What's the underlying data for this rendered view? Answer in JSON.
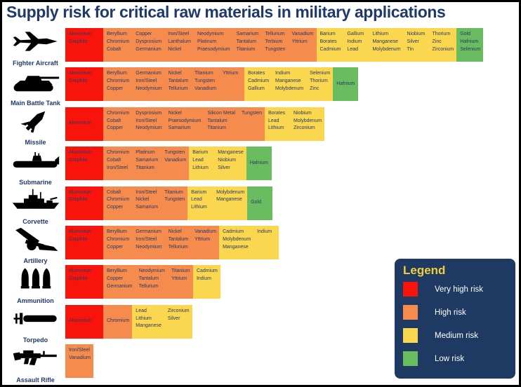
{
  "title": "Supply risk for critical raw materials in military applications",
  "legend": {
    "title": "Legend",
    "background": "#1e3a63",
    "title_color": "#efcf3d"
  },
  "chart_data": {
    "type": "heatmap",
    "title": "Supply risk for critical raw materials in military applications",
    "legend_position": "bottom-right",
    "risk_levels": [
      {
        "key": "very_high",
        "label": "Very high risk",
        "color": "#f9140b"
      },
      {
        "key": "high",
        "label": "High risk",
        "color": "#f58b4d"
      },
      {
        "key": "medium",
        "label": "Medium risk",
        "color": "#fbd64f"
      },
      {
        "key": "low",
        "label": "Low risk",
        "color": "#69bc5f"
      }
    ],
    "categories": [
      "Fighter Aircraft",
      "Main Battle Tank",
      "Missile",
      "Submarine",
      "Corvette",
      "Artillery",
      "Ammunition",
      "Torpedo",
      "Assault Rifle"
    ],
    "rows": [
      {
        "category": "Fighter Aircraft",
        "icon": "fighter-aircraft",
        "materials": {
          "very_high": [
            "Aluminium",
            "Graphite"
          ],
          "high": [
            "Beryllium",
            "Chromium",
            "Cobalt",
            "Copper",
            "Dysprosium",
            "Germanium",
            "Iron/Steel",
            "Lanthalum",
            "Nickel",
            "Neodymium",
            "Platinum",
            "Praesodymium",
            "Samarium",
            "Tantalum",
            "Titanium",
            "Tellurium",
            "Terbium",
            "Tungsten",
            "Vanadium",
            "Yttrium"
          ],
          "medium": [
            "Barium",
            "Borates",
            "Cadmium",
            "Gallium",
            "Indium",
            "Lead",
            "Lithium",
            "Manganese",
            "Molybdenum",
            "Niobium",
            "Silver",
            "Tin",
            "Thorium",
            "Zinc",
            "Zirconium"
          ],
          "low": [
            "Gold",
            "Hafnium",
            "Selenium"
          ]
        }
      },
      {
        "category": "Main Battle Tank",
        "icon": "main-battle-tank",
        "materials": {
          "very_high": [
            "Aluminium",
            "Graphite"
          ],
          "high": [
            "Beryllium",
            "Chromium",
            "Copper",
            "Germanium",
            "Iron/Steel",
            "Neodymium",
            "Nickel",
            "Tantalum",
            "Tellurium",
            "Titanium",
            "Tungsten",
            "Vanadium",
            "Yttrium"
          ],
          "medium": [
            "Borates",
            "Cadmium",
            "Gallium",
            "Indium",
            "Manganese",
            "Molybdenum",
            "Selenium",
            "Thorium",
            "Zinc"
          ],
          "low": [
            "Hafnium"
          ]
        }
      },
      {
        "category": "Missile",
        "icon": "missile",
        "materials": {
          "very_high": [
            "Aluminium"
          ],
          "high": [
            "Chromium",
            "Cobalt",
            "Copper",
            "Dysprosium",
            "Iron/Steel",
            "Neodymium",
            "Nickel",
            "Praesodymium",
            "Samarium",
            "Silicon Metal",
            "Tantalum",
            "Titanium",
            "Tungsten"
          ],
          "medium": [
            "Borates",
            "Lead",
            "Lithium",
            "Niobium",
            "Molybdenum",
            "Zirconium"
          ],
          "low": []
        }
      },
      {
        "category": "Submarine",
        "icon": "submarine",
        "materials": {
          "very_high": [
            "Aluminium",
            "Graphite"
          ],
          "high": [
            "Chromium",
            "Cobalt",
            "Iron/Steel",
            "Platinum",
            "Samarium",
            "Titanium",
            "Tungsten",
            "Vanadium"
          ],
          "medium": [
            "Barium",
            "Lead",
            "Lithium",
            "Manganese",
            "Niobium",
            "Silver"
          ],
          "low": [
            "Hafnium"
          ]
        }
      },
      {
        "category": "Corvette",
        "icon": "corvette",
        "materials": {
          "very_high": [
            "Aluminium",
            "Graphite"
          ],
          "high": [
            "Cobalt",
            "Chromium",
            "Copper",
            "Iron/Steel",
            "Nickel",
            "Samarium",
            "Titanium",
            "Tungsten"
          ],
          "medium": [
            "Barium",
            "Lead",
            "Lithium",
            "Molybdenum",
            "Manganese"
          ],
          "low": [
            "Gold"
          ]
        }
      },
      {
        "category": "Artillery",
        "icon": "artillery",
        "materials": {
          "very_high": [
            "Aluminium",
            "Graphite"
          ],
          "high": [
            "Beryllium",
            "Chromium",
            "Copper",
            "Germanium",
            "Iron/Steel",
            "Neodymium",
            "Nickel",
            "Tantalum",
            "Tellurium",
            "Vanadium",
            "Yttrium"
          ],
          "medium": [
            "Cadmium",
            "Molybdenum",
            "Manganese",
            "Indium"
          ],
          "low": []
        }
      },
      {
        "category": "Ammunition",
        "icon": "ammunition",
        "materials": {
          "very_high": [
            "Aluminium",
            "Graphite"
          ],
          "high": [
            "Beryllium",
            "Copper",
            "Germanium",
            "Neodymium",
            "Tantalum",
            "Tellurium",
            "Titanium",
            "Yttrium"
          ],
          "medium": [
            "Cadmium",
            "Indium"
          ],
          "low": []
        }
      },
      {
        "category": "Torpedo",
        "icon": "torpedo",
        "materials": {
          "very_high": [
            "Aluminium"
          ],
          "high": [
            "Chromium"
          ],
          "medium": [
            "Lead",
            "Lithium",
            "Manganese",
            "Zirconium",
            "Silver"
          ],
          "low": []
        }
      },
      {
        "category": "Assault Rifle",
        "icon": "assault-rifle",
        "materials": {
          "very_high": [],
          "high": [
            "Iron/Steel",
            "Vanadium"
          ],
          "medium": [],
          "low": []
        }
      }
    ]
  }
}
